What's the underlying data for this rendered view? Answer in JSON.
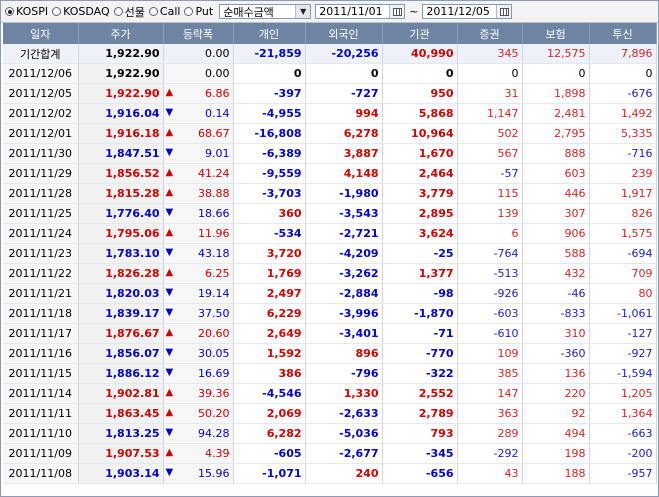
{
  "toolbar": {
    "markets": [
      {
        "label": "KOSPI",
        "selected": true
      },
      {
        "label": "KOSDAQ",
        "selected": false
      },
      {
        "label": "선물",
        "selected": false
      },
      {
        "label": "Call",
        "selected": false
      },
      {
        "label": "Put",
        "selected": false
      }
    ],
    "metric_select": "순매수금액",
    "date_from": "2011/11/01",
    "date_sep": "~",
    "date_to": "2011/12/05"
  },
  "columns": [
    "일자",
    "주가",
    "등락폭",
    "개인",
    "외국인",
    "기관",
    "증권",
    "보험",
    "투신"
  ],
  "colors": {
    "up": "#cc0000",
    "down": "#0000cc",
    "header": "#6e84a3"
  },
  "rows": [
    {
      "date": "기간합계",
      "price": "1,922.90",
      "dir": "flat",
      "change": "0.00",
      "indiv": "-21,859",
      "foreign": "-20,256",
      "inst": "40,990",
      "sec": "345",
      "ins": "12,575",
      "fund": "7,896"
    },
    {
      "date": "2011/12/06",
      "price": "1,922.90",
      "dir": "flat",
      "change": "0.00",
      "indiv": "0",
      "foreign": "0",
      "inst": "0",
      "sec": "0",
      "ins": "0",
      "fund": "0"
    },
    {
      "date": "2011/12/05",
      "price": "1,922.90",
      "dir": "up",
      "change": "6.86",
      "indiv": "-397",
      "foreign": "-727",
      "inst": "950",
      "sec": "31",
      "ins": "1,898",
      "fund": "-676"
    },
    {
      "date": "2011/12/02",
      "price": "1,916.04",
      "dir": "down",
      "change": "0.14",
      "indiv": "-4,955",
      "foreign": "994",
      "inst": "5,868",
      "sec": "1,147",
      "ins": "2,481",
      "fund": "1,492"
    },
    {
      "date": "2011/12/01",
      "price": "1,916.18",
      "dir": "up",
      "change": "68.67",
      "indiv": "-16,808",
      "foreign": "6,278",
      "inst": "10,964",
      "sec": "502",
      "ins": "2,795",
      "fund": "5,335"
    },
    {
      "date": "2011/11/30",
      "price": "1,847.51",
      "dir": "down",
      "change": "9.01",
      "indiv": "-6,389",
      "foreign": "3,887",
      "inst": "1,670",
      "sec": "567",
      "ins": "888",
      "fund": "-716"
    },
    {
      "date": "2011/11/29",
      "price": "1,856.52",
      "dir": "up",
      "change": "41.24",
      "indiv": "-9,559",
      "foreign": "4,148",
      "inst": "2,464",
      "sec": "-57",
      "ins": "603",
      "fund": "239"
    },
    {
      "date": "2011/11/28",
      "price": "1,815.28",
      "dir": "up",
      "change": "38.88",
      "indiv": "-3,703",
      "foreign": "-1,980",
      "inst": "3,779",
      "sec": "115",
      "ins": "446",
      "fund": "1,917"
    },
    {
      "date": "2011/11/25",
      "price": "1,776.40",
      "dir": "down",
      "change": "18.66",
      "indiv": "360",
      "foreign": "-3,543",
      "inst": "2,895",
      "sec": "139",
      "ins": "307",
      "fund": "826"
    },
    {
      "date": "2011/11/24",
      "price": "1,795.06",
      "dir": "up",
      "change": "11.96",
      "indiv": "-534",
      "foreign": "-2,721",
      "inst": "3,624",
      "sec": "6",
      "ins": "906",
      "fund": "1,575"
    },
    {
      "date": "2011/11/23",
      "price": "1,783.10",
      "dir": "down",
      "change": "43.18",
      "indiv": "3,720",
      "foreign": "-4,209",
      "inst": "-25",
      "sec": "-764",
      "ins": "588",
      "fund": "-694"
    },
    {
      "date": "2011/11/22",
      "price": "1,826.28",
      "dir": "up",
      "change": "6.25",
      "indiv": "1,769",
      "foreign": "-3,262",
      "inst": "1,377",
      "sec": "-513",
      "ins": "432",
      "fund": "709"
    },
    {
      "date": "2011/11/21",
      "price": "1,820.03",
      "dir": "down",
      "change": "19.14",
      "indiv": "2,497",
      "foreign": "-2,884",
      "inst": "-98",
      "sec": "-926",
      "ins": "-46",
      "fund": "80"
    },
    {
      "date": "2011/11/18",
      "price": "1,839.17",
      "dir": "down",
      "change": "37.50",
      "indiv": "6,229",
      "foreign": "-3,996",
      "inst": "-1,870",
      "sec": "-603",
      "ins": "-833",
      "fund": "-1,061"
    },
    {
      "date": "2011/11/17",
      "price": "1,876.67",
      "dir": "up",
      "change": "20.60",
      "indiv": "2,649",
      "foreign": "-3,401",
      "inst": "-71",
      "sec": "-610",
      "ins": "310",
      "fund": "-127"
    },
    {
      "date": "2011/11/16",
      "price": "1,856.07",
      "dir": "down",
      "change": "30.05",
      "indiv": "1,592",
      "foreign": "896",
      "inst": "-770",
      "sec": "109",
      "ins": "-360",
      "fund": "-927"
    },
    {
      "date": "2011/11/15",
      "price": "1,886.12",
      "dir": "down",
      "change": "16.69",
      "indiv": "386",
      "foreign": "-796",
      "inst": "-322",
      "sec": "385",
      "ins": "136",
      "fund": "-1,594"
    },
    {
      "date": "2011/11/14",
      "price": "1,902.81",
      "dir": "up",
      "change": "39.36",
      "indiv": "-4,546",
      "foreign": "1,330",
      "inst": "2,552",
      "sec": "147",
      "ins": "220",
      "fund": "1,205"
    },
    {
      "date": "2011/11/11",
      "price": "1,863.45",
      "dir": "up",
      "change": "50.20",
      "indiv": "2,069",
      "foreign": "-2,633",
      "inst": "2,789",
      "sec": "363",
      "ins": "92",
      "fund": "1,364"
    },
    {
      "date": "2011/11/10",
      "price": "1,813.25",
      "dir": "down",
      "change": "94.28",
      "indiv": "6,282",
      "foreign": "-5,036",
      "inst": "793",
      "sec": "289",
      "ins": "494",
      "fund": "-663"
    },
    {
      "date": "2011/11/09",
      "price": "1,907.53",
      "dir": "up",
      "change": "4.39",
      "indiv": "-605",
      "foreign": "-2,677",
      "inst": "-345",
      "sec": "-292",
      "ins": "198",
      "fund": "-200"
    },
    {
      "date": "2011/11/08",
      "price": "1,903.14",
      "dir": "down",
      "change": "15.96",
      "indiv": "-1,071",
      "foreign": "240",
      "inst": "-656",
      "sec": "43",
      "ins": "188",
      "fund": "-957"
    }
  ]
}
